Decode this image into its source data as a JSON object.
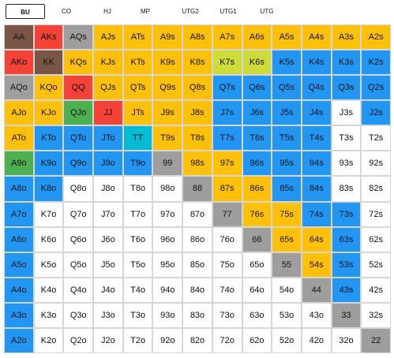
{
  "tabs": [
    {
      "label": "BU",
      "active": true
    },
    {
      "label": "CO",
      "active": false
    },
    {
      "label": "HJ",
      "active": false
    },
    {
      "label": "MP",
      "active": false
    },
    {
      "label": "UTG2",
      "active": false
    },
    {
      "label": "UTG1",
      "active": false
    },
    {
      "label": "UTG",
      "active": false
    }
  ],
  "colors": {
    "W": "#ffffff",
    "B": "#2196f3",
    "O": "#ffc107",
    "R": "#f44336",
    "Br": "#795548",
    "G": "#9e9e9e",
    "Gr": "#4caf50",
    "C": "#00bcd4",
    "L": "#cddc39"
  },
  "grid": [
    [
      {
        "t": "AA",
        "c": "Br"
      },
      {
        "t": "AKs",
        "c": "R"
      },
      {
        "t": "AQs",
        "c": "G"
      },
      {
        "t": "AJs",
        "c": "O"
      },
      {
        "t": "ATs",
        "c": "O"
      },
      {
        "t": "A9s",
        "c": "O"
      },
      {
        "t": "A8s",
        "c": "O"
      },
      {
        "t": "A7s",
        "c": "O"
      },
      {
        "t": "A6s",
        "c": "O"
      },
      {
        "t": "A5s",
        "c": "O"
      },
      {
        "t": "A4s",
        "c": "O"
      },
      {
        "t": "A3s",
        "c": "O"
      },
      {
        "t": "A2s",
        "c": "O"
      }
    ],
    [
      {
        "t": "AKo",
        "c": "R"
      },
      {
        "t": "KK",
        "c": "Br"
      },
      {
        "t": "KQs",
        "c": "O"
      },
      {
        "t": "KJs",
        "c": "O"
      },
      {
        "t": "KTs",
        "c": "O"
      },
      {
        "t": "K9s",
        "c": "O"
      },
      {
        "t": "K8s",
        "c": "O"
      },
      {
        "t": "K7s",
        "c": "L"
      },
      {
        "t": "K6s",
        "c": "L"
      },
      {
        "t": "K5s",
        "c": "B"
      },
      {
        "t": "K4s",
        "c": "B"
      },
      {
        "t": "K3s",
        "c": "B"
      },
      {
        "t": "K2s",
        "c": "B"
      }
    ],
    [
      {
        "t": "AQo",
        "c": "G"
      },
      {
        "t": "KQo",
        "c": "O"
      },
      {
        "t": "QQ",
        "c": "R"
      },
      {
        "t": "QJs",
        "c": "O"
      },
      {
        "t": "QTs",
        "c": "O"
      },
      {
        "t": "Q9s",
        "c": "O"
      },
      {
        "t": "Q8s",
        "c": "O"
      },
      {
        "t": "Q7s",
        "c": "B"
      },
      {
        "t": "Q6s",
        "c": "B"
      },
      {
        "t": "Q5s",
        "c": "B"
      },
      {
        "t": "Q4s",
        "c": "B"
      },
      {
        "t": "Q3s",
        "c": "B"
      },
      {
        "t": "Q2s",
        "c": "B"
      }
    ],
    [
      {
        "t": "AJo",
        "c": "O"
      },
      {
        "t": "KJo",
        "c": "O"
      },
      {
        "t": "QJo",
        "c": "Gr"
      },
      {
        "t": "JJ",
        "c": "R"
      },
      {
        "t": "JTs",
        "c": "O"
      },
      {
        "t": "J9s",
        "c": "O"
      },
      {
        "t": "J8s",
        "c": "O"
      },
      {
        "t": "J7s",
        "c": "B"
      },
      {
        "t": "J6s",
        "c": "B"
      },
      {
        "t": "J5s",
        "c": "B"
      },
      {
        "t": "J4s",
        "c": "B"
      },
      {
        "t": "J3s",
        "c": "W"
      },
      {
        "t": "J2s",
        "c": "B"
      }
    ],
    [
      {
        "t": "ATo",
        "c": "O"
      },
      {
        "t": "KTo",
        "c": "B"
      },
      {
        "t": "QTo",
        "c": "B"
      },
      {
        "t": "JTo",
        "c": "B"
      },
      {
        "t": "TT",
        "c": "C"
      },
      {
        "t": "T9s",
        "c": "O"
      },
      {
        "t": "T8s",
        "c": "O"
      },
      {
        "t": "T7s",
        "c": "B"
      },
      {
        "t": "T6s",
        "c": "B"
      },
      {
        "t": "T5s",
        "c": "B"
      },
      {
        "t": "T4s",
        "c": "B"
      },
      {
        "t": "T3s",
        "c": "W"
      },
      {
        "t": "T2s",
        "c": "W"
      }
    ],
    [
      {
        "t": "A9o",
        "c": "Gr"
      },
      {
        "t": "K9o",
        "c": "B"
      },
      {
        "t": "Q9o",
        "c": "B"
      },
      {
        "t": "J9o",
        "c": "B"
      },
      {
        "t": "T9o",
        "c": "B"
      },
      {
        "t": "99",
        "c": "G"
      },
      {
        "t": "98s",
        "c": "O"
      },
      {
        "t": "97s",
        "c": "O"
      },
      {
        "t": "96s",
        "c": "B"
      },
      {
        "t": "95s",
        "c": "B"
      },
      {
        "t": "94s",
        "c": "B"
      },
      {
        "t": "93s",
        "c": "W"
      },
      {
        "t": "92s",
        "c": "W"
      }
    ],
    [
      {
        "t": "A8o",
        "c": "B"
      },
      {
        "t": "K8o",
        "c": "B"
      },
      {
        "t": "Q8o",
        "c": "W"
      },
      {
        "t": "J8o",
        "c": "W"
      },
      {
        "t": "T8o",
        "c": "W"
      },
      {
        "t": "98o",
        "c": "W"
      },
      {
        "t": "88",
        "c": "G"
      },
      {
        "t": "87s",
        "c": "O"
      },
      {
        "t": "86s",
        "c": "O"
      },
      {
        "t": "85s",
        "c": "B"
      },
      {
        "t": "84s",
        "c": "B"
      },
      {
        "t": "83s",
        "c": "W"
      },
      {
        "t": "82s",
        "c": "W"
      }
    ],
    [
      {
        "t": "A7o",
        "c": "B"
      },
      {
        "t": "K7o",
        "c": "W"
      },
      {
        "t": "Q7o",
        "c": "W"
      },
      {
        "t": "J7o",
        "c": "W"
      },
      {
        "t": "T7o",
        "c": "W"
      },
      {
        "t": "97o",
        "c": "W"
      },
      {
        "t": "87o",
        "c": "W"
      },
      {
        "t": "77",
        "c": "G"
      },
      {
        "t": "76s",
        "c": "O"
      },
      {
        "t": "75s",
        "c": "O"
      },
      {
        "t": "74s",
        "c": "B"
      },
      {
        "t": "73s",
        "c": "B"
      },
      {
        "t": "72s",
        "c": "W"
      }
    ],
    [
      {
        "t": "A6o",
        "c": "B"
      },
      {
        "t": "K6o",
        "c": "W"
      },
      {
        "t": "Q6o",
        "c": "W"
      },
      {
        "t": "J6o",
        "c": "W"
      },
      {
        "t": "T6o",
        "c": "W"
      },
      {
        "t": "96o",
        "c": "W"
      },
      {
        "t": "86o",
        "c": "W"
      },
      {
        "t": "76o",
        "c": "W"
      },
      {
        "t": "66",
        "c": "G"
      },
      {
        "t": "65s",
        "c": "O"
      },
      {
        "t": "64s",
        "c": "O"
      },
      {
        "t": "63s",
        "c": "B"
      },
      {
        "t": "62s",
        "c": "W"
      }
    ],
    [
      {
        "t": "A5o",
        "c": "B"
      },
      {
        "t": "K5o",
        "c": "W"
      },
      {
        "t": "Q5o",
        "c": "W"
      },
      {
        "t": "J5o",
        "c": "W"
      },
      {
        "t": "T5o",
        "c": "W"
      },
      {
        "t": "95o",
        "c": "W"
      },
      {
        "t": "85o",
        "c": "W"
      },
      {
        "t": "75o",
        "c": "W"
      },
      {
        "t": "65o",
        "c": "W"
      },
      {
        "t": "55",
        "c": "G"
      },
      {
        "t": "54s",
        "c": "O"
      },
      {
        "t": "53s",
        "c": "B"
      },
      {
        "t": "52s",
        "c": "W"
      }
    ],
    [
      {
        "t": "A4o",
        "c": "B"
      },
      {
        "t": "K4o",
        "c": "W"
      },
      {
        "t": "Q4o",
        "c": "W"
      },
      {
        "t": "J4o",
        "c": "W"
      },
      {
        "t": "T4o",
        "c": "W"
      },
      {
        "t": "94o",
        "c": "W"
      },
      {
        "t": "84o",
        "c": "W"
      },
      {
        "t": "74o",
        "c": "W"
      },
      {
        "t": "64o",
        "c": "W"
      },
      {
        "t": "54o",
        "c": "W"
      },
      {
        "t": "44",
        "c": "G"
      },
      {
        "t": "43s",
        "c": "B"
      },
      {
        "t": "42s",
        "c": "W"
      }
    ],
    [
      {
        "t": "A3o",
        "c": "B"
      },
      {
        "t": "K3o",
        "c": "W"
      },
      {
        "t": "Q3o",
        "c": "W"
      },
      {
        "t": "J3o",
        "c": "W"
      },
      {
        "t": "T3o",
        "c": "W"
      },
      {
        "t": "93o",
        "c": "W"
      },
      {
        "t": "83o",
        "c": "W"
      },
      {
        "t": "73o",
        "c": "W"
      },
      {
        "t": "63o",
        "c": "W"
      },
      {
        "t": "53o",
        "c": "W"
      },
      {
        "t": "43o",
        "c": "W"
      },
      {
        "t": "33",
        "c": "G"
      },
      {
        "t": "32s",
        "c": "W"
      }
    ],
    [
      {
        "t": "A2o",
        "c": "B"
      },
      {
        "t": "K2o",
        "c": "W"
      },
      {
        "t": "Q2o",
        "c": "W"
      },
      {
        "t": "J2o",
        "c": "W"
      },
      {
        "t": "T2o",
        "c": "W"
      },
      {
        "t": "92o",
        "c": "W"
      },
      {
        "t": "82o",
        "c": "W"
      },
      {
        "t": "72o",
        "c": "W"
      },
      {
        "t": "62o",
        "c": "W"
      },
      {
        "t": "52o",
        "c": "W"
      },
      {
        "t": "42o",
        "c": "W"
      },
      {
        "t": "32o",
        "c": "W"
      },
      {
        "t": "22",
        "c": "G"
      }
    ]
  ]
}
